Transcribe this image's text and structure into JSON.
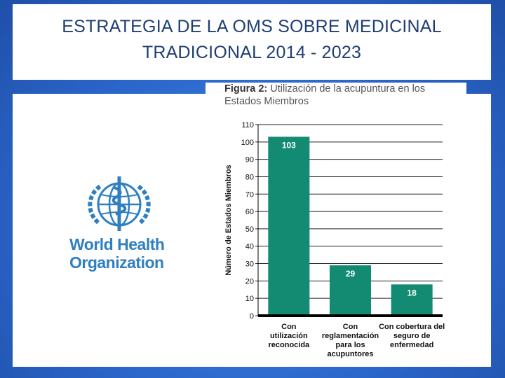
{
  "slide": {
    "title_line1": "ESTRATEGIA DE LA OMS SOBRE MEDICINAL",
    "title_line2": "TRADICIONAL 2014 - 2023"
  },
  "logo": {
    "line1": "World Health",
    "line2": "Organization"
  },
  "figure": {
    "caption_bold": "Figura 2:",
    "caption_rest": " Utilización de la acupuntura en los Estados Miembros"
  },
  "colors": {
    "bar": "#138a72",
    "logo": "#2f7fc1",
    "title": "#1f3e73"
  },
  "chart_data": {
    "type": "bar",
    "title": "Figura 2: Utilización de la acupuntura en los Estados Miembros",
    "categories": [
      [
        "Con",
        "utilización",
        "reconocida"
      ],
      [
        "Con",
        "reglamentación",
        "para los",
        "acupuntores"
      ],
      [
        "Con cobertura del",
        "seguro de",
        "enfermedad"
      ]
    ],
    "values": [
      103,
      29,
      18
    ],
    "value_labels": [
      "103",
      "29",
      "18"
    ],
    "xlabel": "",
    "ylabel": "Número de Estados Miembros",
    "ylim": [
      0,
      110
    ],
    "yticks": [
      0,
      10,
      20,
      30,
      40,
      50,
      60,
      70,
      80,
      90,
      100,
      110
    ],
    "grid": true
  }
}
